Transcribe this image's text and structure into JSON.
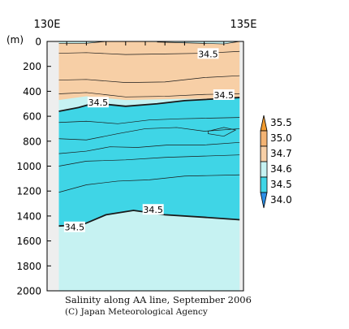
{
  "chart_data": {
    "type": "heatmap",
    "title": "Salinity along AA line, September 2006",
    "credit": "(C) Japan Meteorological Agency",
    "x_axis": {
      "range": [
        130,
        135
      ],
      "labels": [
        {
          "value": 130,
          "text": "130E"
        },
        {
          "value": 135,
          "text": "135E"
        }
      ],
      "minor_step": 0.5
    },
    "y_axis": {
      "unit_label": "(m)",
      "range": [
        0,
        2000
      ],
      "inverted": true,
      "ticks": [
        0,
        200,
        400,
        600,
        800,
        1000,
        1200,
        1400,
        1600,
        1800,
        2000
      ]
    },
    "data_extent_lon": [
      130.3,
      134.9
    ],
    "colorbar": {
      "levels": [
        "35.5",
        "35.0",
        "34.7",
        "34.6",
        "34.5",
        "34.0"
      ],
      "colors": [
        "#f09a2e",
        "#f3b373",
        "#f7cfa6",
        "#c6f2f2",
        "#3fd5e6",
        "#2b8ee6"
      ]
    },
    "layers": [
      {
        "name": "34.6-34.7",
        "color": "#f7cfa6",
        "top": [
          [
            130.3,
            15
          ],
          [
            131.0,
            15
          ],
          [
            131.5,
            0
          ],
          [
            132.8,
            5
          ],
          [
            134.5,
            20
          ],
          [
            134.9,
            0
          ]
        ],
        "bottom": [
          [
            130.3,
            470
          ],
          [
            131.0,
            440
          ],
          [
            132.0,
            470
          ],
          [
            133.5,
            460
          ],
          [
            134.3,
            460
          ],
          [
            134.9,
            470
          ]
        ]
      },
      {
        "name": "34.5-34.6",
        "color": "#3fd5e6",
        "top": [
          [
            130.3,
            560
          ],
          [
            130.8,
            530
          ],
          [
            131.2,
            495
          ],
          [
            132.0,
            520
          ],
          [
            132.8,
            500
          ],
          [
            133.5,
            475
          ],
          [
            134.9,
            450
          ]
        ],
        "bottom": [
          [
            130.3,
            1480
          ],
          [
            130.9,
            1470
          ],
          [
            131.5,
            1390
          ],
          [
            132.2,
            1355
          ],
          [
            133.0,
            1390
          ],
          [
            134.0,
            1410
          ],
          [
            134.9,
            1430
          ]
        ]
      }
    ],
    "background_color": "#c6f2f2",
    "frame_fill": "#eeeeee",
    "contours": [
      {
        "level": "34.6",
        "bold": false,
        "points": [
          [
            130.3,
            15
          ],
          [
            131.0,
            15
          ],
          [
            131.5,
            0
          ]
        ]
      },
      {
        "level": "34.6",
        "bold": false,
        "points": [
          [
            132.8,
            5
          ],
          [
            134.5,
            20
          ],
          [
            134.9,
            0
          ]
        ]
      },
      {
        "level": "34.7",
        "bold": false,
        "points": [
          [
            130.3,
            95
          ],
          [
            131.0,
            90
          ],
          [
            132.0,
            105
          ],
          [
            133.0,
            100
          ],
          [
            134.0,
            95
          ],
          [
            134.9,
            80
          ]
        ]
      },
      {
        "level": "34.7",
        "bold": false,
        "points": [
          [
            130.3,
            310
          ],
          [
            131.0,
            305
          ],
          [
            132.0,
            330
          ],
          [
            133.0,
            325
          ],
          [
            134.0,
            290
          ],
          [
            134.9,
            275
          ]
        ]
      },
      {
        "level": "34.7",
        "bold": false,
        "points": [
          [
            130.3,
            420
          ],
          [
            131.0,
            410
          ],
          [
            132.0,
            445
          ],
          [
            133.0,
            440
          ],
          [
            134.0,
            425
          ],
          [
            134.9,
            420
          ]
        ]
      },
      {
        "level": "34.5",
        "bold": true,
        "points": [
          [
            130.3,
            560
          ],
          [
            130.8,
            530
          ],
          [
            131.2,
            495
          ],
          [
            132.0,
            520
          ],
          [
            132.8,
            500
          ],
          [
            133.5,
            475
          ],
          [
            134.9,
            450
          ]
        ]
      },
      {
        "level": "34.5",
        "bold": false,
        "points": [
          [
            130.3,
            650
          ],
          [
            131.0,
            640
          ],
          [
            131.8,
            660
          ],
          [
            132.6,
            630
          ],
          [
            133.4,
            620
          ],
          [
            134.9,
            610
          ]
        ]
      },
      {
        "level": "34.5",
        "bold": false,
        "points": [
          [
            130.3,
            780
          ],
          [
            131.0,
            790
          ],
          [
            131.8,
            740
          ],
          [
            132.5,
            700
          ],
          [
            133.3,
            690
          ],
          [
            134.0,
            720
          ],
          [
            134.9,
            700
          ]
        ]
      },
      {
        "level": "34.5",
        "bold": false,
        "points": [
          [
            130.3,
            900
          ],
          [
            131.0,
            880
          ],
          [
            131.6,
            845
          ],
          [
            132.3,
            850
          ],
          [
            133.1,
            830
          ],
          [
            134.0,
            830
          ],
          [
            134.9,
            810
          ]
        ]
      },
      {
        "level": "34.5",
        "bold": false,
        "points": [
          [
            130.3,
            1000
          ],
          [
            131.0,
            960
          ],
          [
            132.0,
            950
          ],
          [
            133.0,
            930
          ],
          [
            134.9,
            910
          ]
        ]
      },
      {
        "level": "34.5",
        "bold": false,
        "points": [
          [
            130.3,
            1210
          ],
          [
            131.0,
            1150
          ],
          [
            131.8,
            1120
          ],
          [
            132.6,
            1110
          ],
          [
            133.5,
            1080
          ],
          [
            134.9,
            1070
          ]
        ]
      },
      {
        "level": "34.5",
        "bold": true,
        "points": [
          [
            130.3,
            1480
          ],
          [
            130.9,
            1470
          ],
          [
            131.5,
            1390
          ],
          [
            132.2,
            1355
          ],
          [
            133.0,
            1390
          ],
          [
            134.0,
            1410
          ],
          [
            134.9,
            1430
          ]
        ]
      },
      {
        "level": "34.6",
        "bold": false,
        "points": [
          [
            134.1,
            720
          ],
          [
            134.5,
            690
          ],
          [
            134.8,
            710
          ],
          [
            134.5,
            760
          ],
          [
            134.1,
            740
          ],
          [
            134.1,
            720
          ]
        ]
      }
    ],
    "contour_labels": [
      {
        "text": "34.5",
        "lon": 134.1,
        "depth": 100
      },
      {
        "text": "34.5",
        "lon": 131.3,
        "depth": 490
      },
      {
        "text": "34.5",
        "lon": 134.5,
        "depth": 430
      },
      {
        "text": "34.5",
        "lon": 132.7,
        "depth": 1350
      },
      {
        "text": "34.5",
        "lon": 130.7,
        "depth": 1490
      }
    ]
  }
}
